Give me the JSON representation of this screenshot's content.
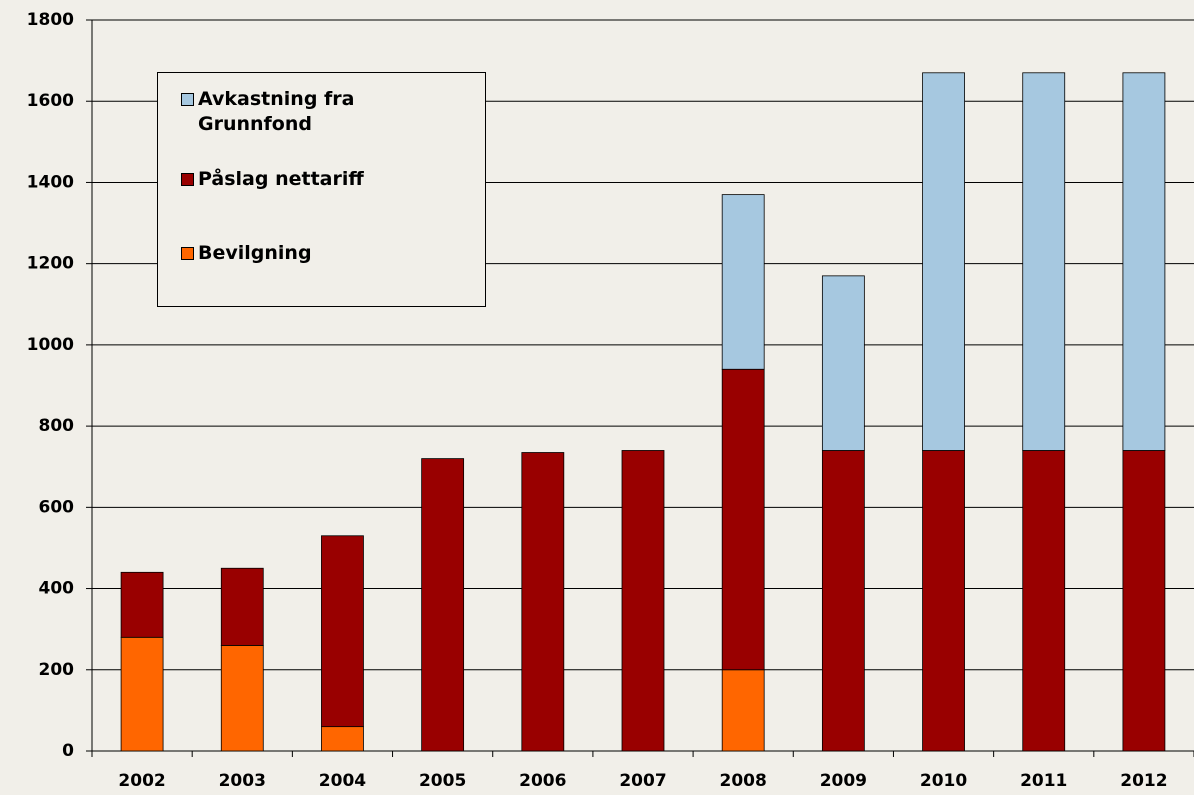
{
  "chart_data": {
    "type": "stacked-bar",
    "categories": [
      "2002",
      "2003",
      "2004",
      "2005",
      "2006",
      "2007",
      "2008",
      "2009",
      "2010",
      "2011",
      "2012"
    ],
    "series": [
      {
        "name": "Avkastning fra Grunnfond",
        "color": "#a6c8e0",
        "values": [
          null,
          null,
          null,
          null,
          null,
          null,
          430,
          430,
          930,
          930,
          930
        ]
      },
      {
        "name": "Påslag nettariff",
        "color": "#990000",
        "values": [
          160,
          190,
          470,
          720,
          735,
          740,
          740,
          740,
          740,
          740,
          740
        ]
      },
      {
        "name": "Bevilgning",
        "color": "#ff6600",
        "values": [
          280,
          260,
          60,
          null,
          null,
          null,
          200,
          null,
          null,
          null,
          null
        ]
      }
    ],
    "ylim": [
      0,
      1800
    ],
    "yticks": [
      0,
      200,
      400,
      600,
      800,
      1000,
      1200,
      1400,
      1600,
      1800
    ],
    "grid": true,
    "legend": "upper left"
  }
}
